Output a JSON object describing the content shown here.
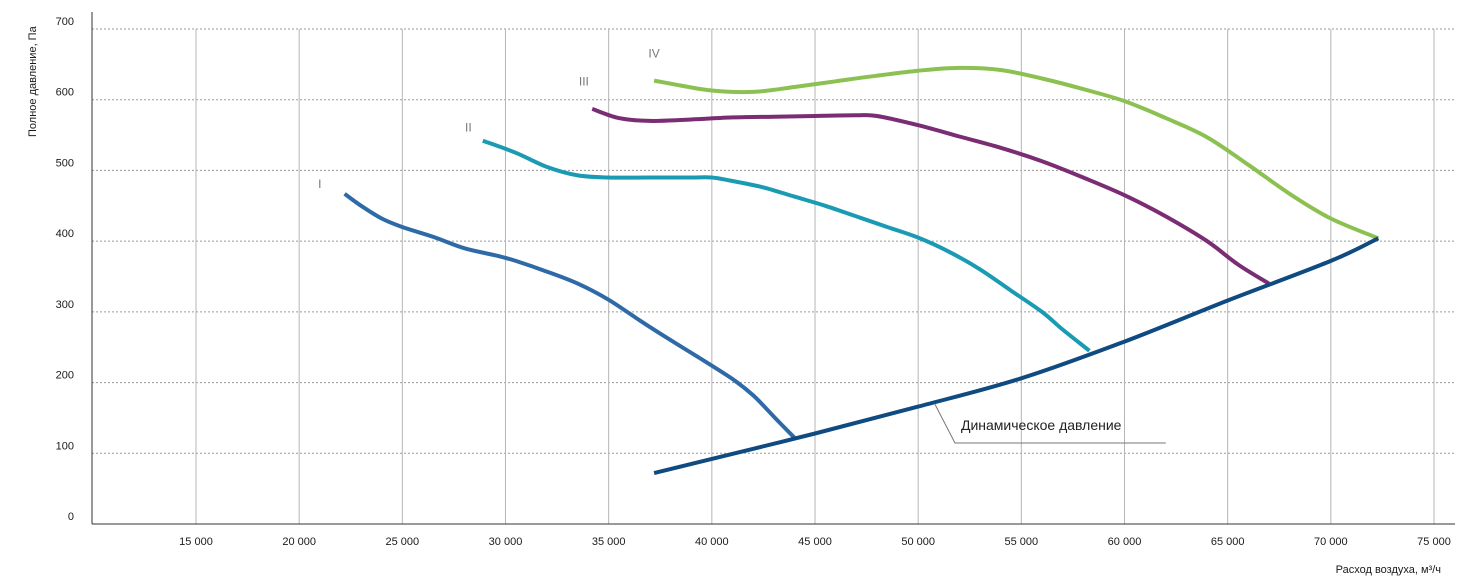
{
  "chart_data": {
    "type": "line",
    "title": "",
    "xlabel": "Расход воздуха, м³/ч",
    "ylabel": "Полное давление, Па",
    "xlim": [
      10000,
      76000
    ],
    "ylim": [
      0,
      700
    ],
    "grid": true,
    "x_ticks": [
      15000,
      20000,
      25000,
      30000,
      35000,
      40000,
      45000,
      50000,
      55000,
      60000,
      65000,
      70000,
      75000
    ],
    "x_tick_labels": [
      "15 000",
      "20 000",
      "25 000",
      "30 000",
      "35 000",
      "40 000",
      "45 000",
      "50 000",
      "55 000",
      "60 000",
      "65 000",
      "70 000",
      "75 000"
    ],
    "y_ticks": [
      0,
      100,
      200,
      300,
      400,
      500,
      600,
      700
    ],
    "y_tick_labels": [
      "0",
      "100",
      "200",
      "300",
      "400",
      "500",
      "600",
      "700"
    ],
    "series": [
      {
        "name": "I",
        "color": "#2f6aa8",
        "x": [
          22200,
          23000,
          24000,
          25000,
          26500,
          28000,
          29500,
          30500,
          32000,
          33500,
          35000,
          36500,
          38000,
          39500,
          41000,
          42000,
          43000,
          44000
        ],
        "y": [
          467,
          450,
          432,
          420,
          406,
          390,
          380,
          372,
          357,
          340,
          317,
          288,
          260,
          233,
          205,
          182,
          152,
          122
        ]
      },
      {
        "name": "II",
        "color": "#1a9bb3",
        "x": [
          28900,
          30500,
          32000,
          33500,
          35000,
          37000,
          39000,
          40000,
          41000,
          42500,
          44000,
          45500,
          47000,
          48500,
          50000,
          51500,
          53000,
          54500,
          56000,
          57000,
          58300
        ],
        "y": [
          542,
          525,
          505,
          493,
          490,
          490,
          490,
          490,
          485,
          476,
          463,
          450,
          435,
          420,
          405,
          385,
          360,
          330,
          300,
          275,
          245
        ]
      },
      {
        "name": "III",
        "color": "#7b2d74",
        "x": [
          34200,
          35500,
          37000,
          39000,
          41000,
          43000,
          45000,
          47000,
          48000,
          50000,
          52000,
          54000,
          56000,
          58000,
          60000,
          62000,
          64000,
          65500,
          67000
        ],
        "y": [
          587,
          574,
          570,
          572,
          575,
          576,
          577,
          578,
          577,
          564,
          548,
          532,
          513,
          490,
          465,
          435,
          400,
          367,
          340
        ]
      },
      {
        "name": "IV",
        "color": "#8cc152",
        "x": [
          37200,
          38500,
          40000,
          42000,
          44000,
          46000,
          48000,
          50000,
          52000,
          54000,
          56000,
          58000,
          60000,
          62000,
          64000,
          66000,
          68000,
          70000,
          72300
        ],
        "y": [
          627,
          620,
          613,
          611,
          618,
          626,
          634,
          641,
          645,
          642,
          630,
          615,
          598,
          574,
          547,
          508,
          467,
          432,
          404
        ]
      },
      {
        "name": "Динамическое давление",
        "color": "#0f4a80",
        "x": [
          37200,
          40000,
          45000,
          50000,
          55000,
          60000,
          65000,
          70000,
          72300
        ],
        "y": [
          72,
          92,
          128,
          166,
          206,
          258,
          316,
          372,
          404
        ]
      }
    ],
    "curve_labels": [
      {
        "text": "I",
        "x": 21000,
        "y": 475
      },
      {
        "text": "II",
        "x": 28200,
        "y": 555
      },
      {
        "text": "III",
        "x": 33800,
        "y": 620
      },
      {
        "text": "IV",
        "x": 37200,
        "y": 660
      }
    ],
    "annotation": {
      "text": "Динамическое давление",
      "point_x": 50800,
      "point_y": 170,
      "label_x": 51300,
      "label_y": 140,
      "end_x": 62000
    }
  }
}
